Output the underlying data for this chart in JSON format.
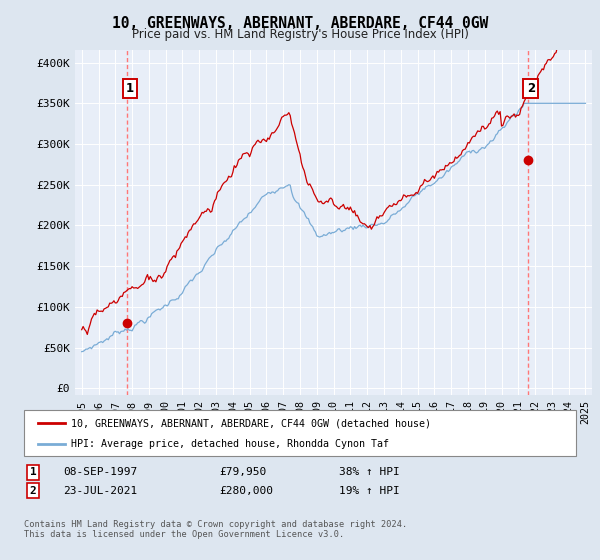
{
  "title": "10, GREENWAYS, ABERNANT, ABERDARE, CF44 0GW",
  "subtitle": "Price paid vs. HM Land Registry's House Price Index (HPI)",
  "y_ticks": [
    0,
    50000,
    100000,
    150000,
    200000,
    250000,
    300000,
    350000,
    400000
  ],
  "y_tick_labels": [
    "£0",
    "£50K",
    "£100K",
    "£150K",
    "£200K",
    "£250K",
    "£300K",
    "£350K",
    "£400K"
  ],
  "hpi_color": "#7aacd6",
  "price_color": "#cc0000",
  "dashed_color": "#ff7777",
  "marker1_date": 1997.69,
  "marker1_price": 79950,
  "marker2_date": 2021.55,
  "marker2_price": 280000,
  "legend_line1": "10, GREENWAYS, ABERNANT, ABERDARE, CF44 0GW (detached house)",
  "legend_line2": "HPI: Average price, detached house, Rhondda Cynon Taf",
  "table_row1_date": "08-SEP-1997",
  "table_row1_price": "£79,950",
  "table_row1_hpi": "38% ↑ HPI",
  "table_row2_date": "23-JUL-2021",
  "table_row2_price": "£280,000",
  "table_row2_hpi": "19% ↑ HPI",
  "footer": "Contains HM Land Registry data © Crown copyright and database right 2024.\nThis data is licensed under the Open Government Licence v3.0.",
  "background_color": "#dde6f0",
  "plot_bg_color": "#e8eef8"
}
